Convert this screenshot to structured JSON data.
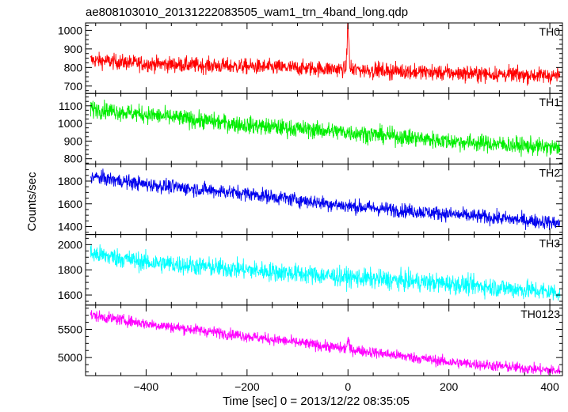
{
  "chart_data": {
    "type": "line",
    "title": "ae808103010_20131222083505_wam1_trn_4band_long.qdp",
    "xlabel": "Time [sec] 0 = 2013/12/22 08:35:05",
    "ylabel": "Counts/sec",
    "xlim": [
      -520,
      425
    ],
    "x_ticks": [
      -400,
      -200,
      0,
      200,
      400
    ],
    "x_tick_labels": [
      "−400",
      "−200",
      "0",
      "200",
      "400"
    ],
    "grid": false,
    "panels": [
      {
        "name": "TH0",
        "color": "#ff0000",
        "ylim": [
          660,
          1040
        ],
        "y_ticks": [
          700,
          800,
          900,
          1000
        ],
        "trend": [
          [
            -510,
            840
          ],
          [
            -400,
            820
          ],
          [
            -200,
            805
          ],
          [
            0,
            790
          ],
          [
            200,
            770
          ],
          [
            420,
            755
          ]
        ],
        "noise": 30,
        "spike": {
          "x": 0,
          "peak": 1045
        }
      },
      {
        "name": "TH1",
        "color": "#00ee00",
        "ylim": [
          770,
          1170
        ],
        "y_ticks": [
          800,
          900,
          1000,
          1100
        ],
        "trend": [
          [
            -510,
            1085
          ],
          [
            -400,
            1050
          ],
          [
            -200,
            990
          ],
          [
            0,
            950
          ],
          [
            200,
            900
          ],
          [
            420,
            860
          ]
        ],
        "noise": 35
      },
      {
        "name": "TH2",
        "color": "#0000ee",
        "ylim": [
          1330,
          1950
        ],
        "y_ticks": [
          1400,
          1600,
          1800
        ],
        "trend": [
          [
            -510,
            1840
          ],
          [
            -400,
            1770
          ],
          [
            -200,
            1690
          ],
          [
            0,
            1580
          ],
          [
            200,
            1510
          ],
          [
            420,
            1430
          ]
        ],
        "noise": 45
      },
      {
        "name": "TH3",
        "color": "#00ffff",
        "ylim": [
          1520,
          2080
        ],
        "y_ticks": [
          1600,
          1800,
          2000
        ],
        "trend": [
          [
            -510,
            1930
          ],
          [
            -400,
            1860
          ],
          [
            -200,
            1800
          ],
          [
            0,
            1740
          ],
          [
            200,
            1690
          ],
          [
            420,
            1620
          ]
        ],
        "noise": 55
      },
      {
        "name": "TH0123",
        "color": "#ff00ff",
        "ylim": [
          4680,
          5930
        ],
        "y_ticks": [
          5000,
          5500
        ],
        "trend": [
          [
            -510,
            5750
          ],
          [
            -400,
            5600
          ],
          [
            -200,
            5380
          ],
          [
            0,
            5150
          ],
          [
            200,
            4920
          ],
          [
            420,
            4760
          ]
        ],
        "noise": 70,
        "spike": {
          "x": 0,
          "peak": 5330
        }
      }
    ]
  }
}
